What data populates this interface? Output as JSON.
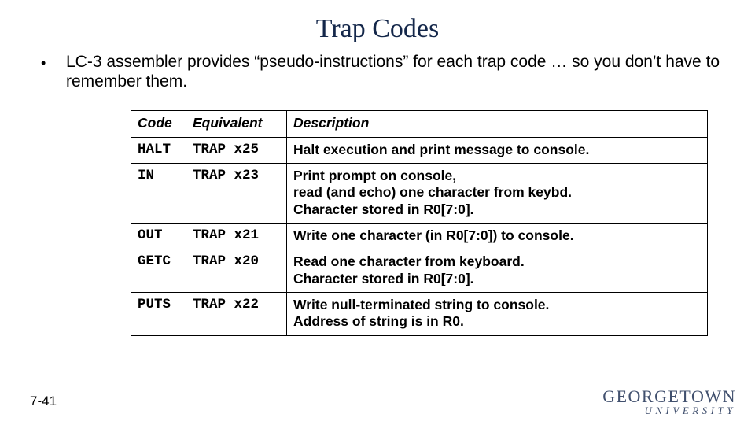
{
  "title": "Trap Codes",
  "bullet": "LC-3 assembler provides “pseudo-instructions” for each trap code … so you don’t have to remember them.",
  "slide_number": "7-41",
  "logo": {
    "line1": "GEORGETOWN",
    "line2": "UNIVERSITY"
  },
  "table": {
    "headers": {
      "code": "Code",
      "equiv": "Equivalent",
      "desc": "Description"
    },
    "rows": [
      {
        "code": "HALT",
        "equiv": "TRAP x25",
        "desc": "Halt execution and print message to console."
      },
      {
        "code": "IN",
        "equiv": "TRAP x23",
        "desc": "Print prompt on console,\nread (and echo) one character from keybd.\nCharacter stored in R0[7:0]."
      },
      {
        "code": "OUT",
        "equiv": "TRAP x21",
        "desc": "Write one character (in R0[7:0]) to console."
      },
      {
        "code": "GETC",
        "equiv": "TRAP x20",
        "desc": "Read one character from keyboard.\nCharacter stored in R0[7:0]."
      },
      {
        "code": "PUTS",
        "equiv": "TRAP x22",
        "desc": "Write null-terminated string to console.\nAddress of string is in R0."
      }
    ]
  },
  "colors": {
    "title": "#14274a",
    "border": "#000000",
    "logo": "#41506e",
    "background": "#ffffff"
  },
  "fonts": {
    "title_family": "Perpetua serif",
    "title_size_pt": 26,
    "body_size_pt": 16,
    "table_size_pt": 13,
    "mono_family": "Courier New"
  }
}
